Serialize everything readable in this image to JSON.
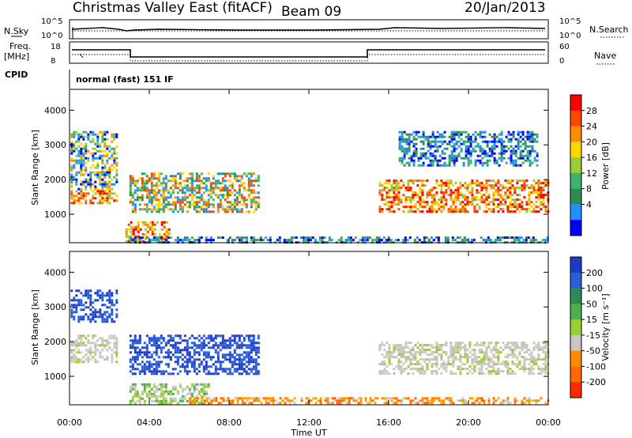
{
  "header": {
    "title": "Christmas Valley East (fitACF)",
    "beam": "Beam 09",
    "date": "20/Jan/2013"
  },
  "status_panels": {
    "nsky_label": "N.Sky",
    "nsearch_label": "N.Search",
    "freq_label_line1": "Freq.",
    "freq_label_line2": "[MHz]",
    "nave_label": "Nave",
    "cpid_label": "CPID",
    "noise_ticks_left": [
      "10^5",
      "10^0"
    ],
    "noise_ticks_right": [
      "10^5",
      "10^0"
    ],
    "freq_ticks": [
      "18",
      "8"
    ],
    "nave_ticks": [
      "60",
      "0"
    ],
    "mode": "normal (fast) 151 IF"
  },
  "chart_data": [
    {
      "type": "heatmap",
      "name": "power",
      "xlabel": "",
      "ylabel": "Slant Range [km]",
      "x_ticks": [
        "00:00",
        "04:00",
        "08:00",
        "12:00",
        "16:00",
        "20:00",
        "00:00"
      ],
      "y_ticks": [
        "1000",
        "2000",
        "3000",
        "4000"
      ],
      "xlim_hours": [
        0,
        24
      ],
      "ylim_km": [
        180,
        4600
      ],
      "colorbar": {
        "label": "Power [dB]",
        "tick_labels": [
          "28",
          "24",
          "20",
          "16",
          "12",
          "8",
          "4"
        ],
        "colors_top_to_bottom": [
          "#ff0000",
          "#ff4500",
          "#ff8c00",
          "#ffd700",
          "#9acd32",
          "#3cb371",
          "#2e8b57",
          "#1e90ff",
          "#0000ff"
        ]
      },
      "regions": [
        {
          "t": [
            0.05,
            2.4
          ],
          "r": [
            1300,
            1700
          ],
          "level": "high"
        },
        {
          "t": [
            0.05,
            2.4
          ],
          "r": [
            1700,
            3400
          ],
          "level": "mixed"
        },
        {
          "t": [
            3.0,
            9.5
          ],
          "r": [
            1100,
            2200
          ],
          "level": "mid"
        },
        {
          "t": [
            2.8,
            5.0
          ],
          "r": [
            200,
            800
          ],
          "level": "high"
        },
        {
          "t": [
            3.0,
            24
          ],
          "r": [
            200,
            360
          ],
          "level": "low"
        },
        {
          "t": [
            15.5,
            24
          ],
          "r": [
            1100,
            2000
          ],
          "level": "high"
        },
        {
          "t": [
            16.5,
            23.5
          ],
          "r": [
            2400,
            3400
          ],
          "level": "low"
        }
      ]
    },
    {
      "type": "heatmap",
      "name": "velocity",
      "xlabel": "Time UT",
      "ylabel": "Slant Range [km]",
      "x_ticks": [
        "00:00",
        "04:00",
        "08:00",
        "12:00",
        "16:00",
        "20:00",
        "00:00"
      ],
      "y_ticks": [
        "1000",
        "2000",
        "3000",
        "4000"
      ],
      "xlim_hours": [
        0,
        24
      ],
      "ylim_km": [
        180,
        4600
      ],
      "colorbar": {
        "label": "Velocity [m s⁻¹]",
        "tick_labels": [
          "200",
          "100",
          "50",
          "15",
          "-15",
          "-50",
          "-100",
          "-200"
        ],
        "colors_top_to_bottom": [
          "#1a3cc8",
          "#2a5fd8",
          "#2e8b57",
          "#4caf50",
          "#9acd32",
          "#c8c8c0",
          "#ff8c00",
          "#ff6a00",
          "#ff2a00"
        ]
      },
      "regions": [
        {
          "t": [
            0.05,
            2.4
          ],
          "r": [
            2600,
            3500
          ],
          "level": "blue"
        },
        {
          "t": [
            0.05,
            2.4
          ],
          "r": [
            1400,
            2200
          ],
          "level": "grey"
        },
        {
          "t": [
            3.0,
            9.5
          ],
          "r": [
            1100,
            2200
          ],
          "level": "blue"
        },
        {
          "t": [
            3.0,
            7.0
          ],
          "r": [
            200,
            800
          ],
          "level": "green"
        },
        {
          "t": [
            6.0,
            24
          ],
          "r": [
            200,
            400
          ],
          "level": "orange"
        },
        {
          "t": [
            15.5,
            24
          ],
          "r": [
            1100,
            2000
          ],
          "level": "grey"
        }
      ]
    }
  ]
}
